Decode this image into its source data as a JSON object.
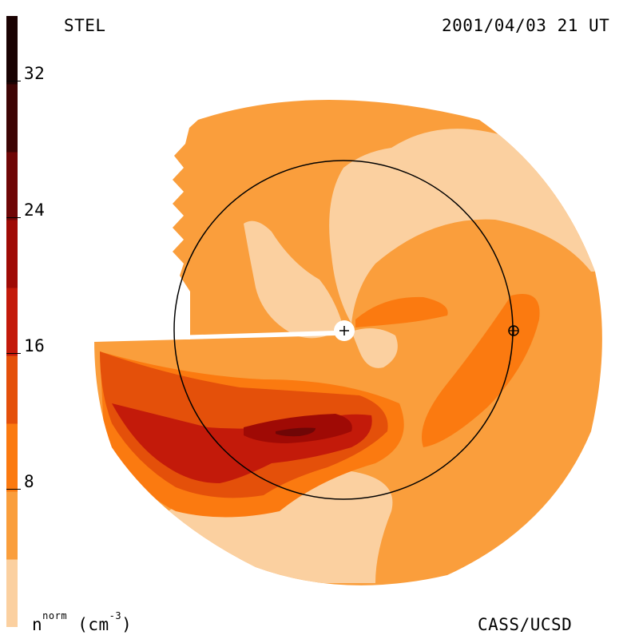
{
  "header": {
    "station": "STEL",
    "timestamp": "2001/04/03 21 UT"
  },
  "footer": {
    "units": "n",
    "units_sup": "norm",
    "units_tail": " (cm",
    "units_exp": "-3",
    "units_close": ")",
    "credit": "CASS/UCSD"
  },
  "colorbar": {
    "ticks": [
      "32",
      "24",
      "16",
      "8"
    ],
    "levels": [
      "#fbd0a0",
      "#fa9e3c",
      "#fb7a10",
      "#e4500a",
      "#c31a0a",
      "#9f0a05",
      "#6f0606",
      "#3d0404",
      "#1a0202"
    ]
  },
  "colors": {
    "background": "#ffffff",
    "ambient": "#fa9e3c",
    "light": "#fbd0a0",
    "medium": "#fb7a10",
    "strong": "#e4500a",
    "stronger": "#c31a0a",
    "peak": "#9f0a05",
    "peak_core": "#6f0606"
  }
}
